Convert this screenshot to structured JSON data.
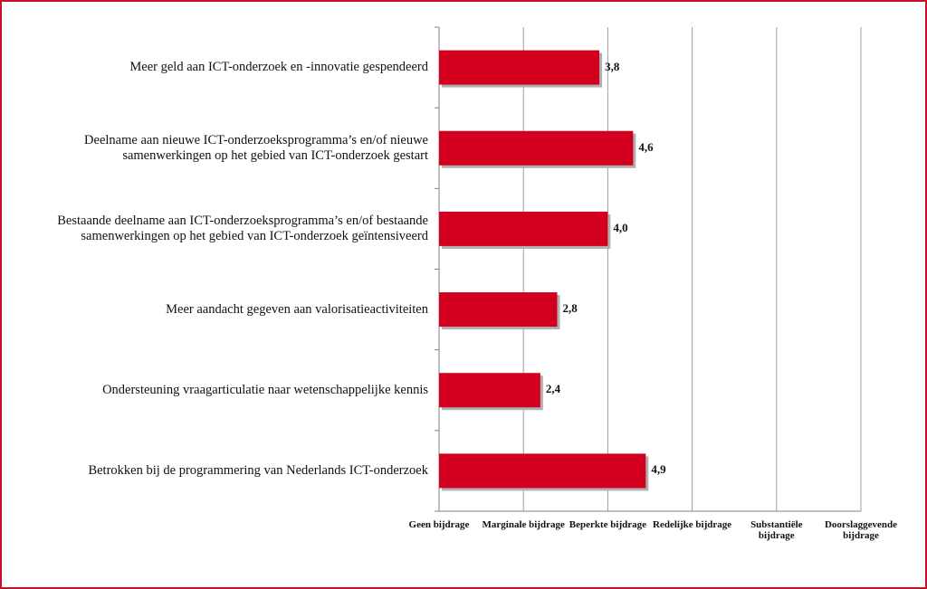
{
  "chart_data": {
    "type": "barh",
    "categories": [
      "Meer geld aan ICT-onderzoek en -innovatie gespendeerd",
      "Deelname aan nieuwe ICT-onderzoeksprogramma’s en/of nieuwe samenwerkingen op het gebied van ICT-onderzoek gestart",
      "Bestaande deelname aan ICT-onderzoeksprogramma’s en/of bestaande samenwerkingen op het gebied van ICT-onderzoek geïntensiveerd",
      "Meer aandacht gegeven aan valorisatieactiviteiten",
      "Ondersteuning vraagarticulatie naar wetenschappelijke kennis",
      "Betrokken bij de programmering van Nederlands ICT-onderzoek"
    ],
    "values": [
      3.8,
      4.6,
      4.0,
      2.8,
      2.4,
      4.9
    ],
    "value_labels": [
      "3,8",
      "4,6",
      "4,0",
      "2,8",
      "2,4",
      "4,9"
    ],
    "color": "#d2001e",
    "xlim": [
      0,
      10
    ],
    "xticks": [
      {
        "value": 0,
        "label": "Geen bijdrage"
      },
      {
        "value": 2,
        "label": "Marginale bijdrage"
      },
      {
        "value": 4,
        "label": "Beperkte bijdrage"
      },
      {
        "value": 6,
        "label": "Redelijke bijdrage"
      },
      {
        "value": 8,
        "label": "Substantiële bijdrage"
      },
      {
        "value": 10,
        "label": "Doorslaggevende bijdrage"
      }
    ],
    "grid": true
  }
}
